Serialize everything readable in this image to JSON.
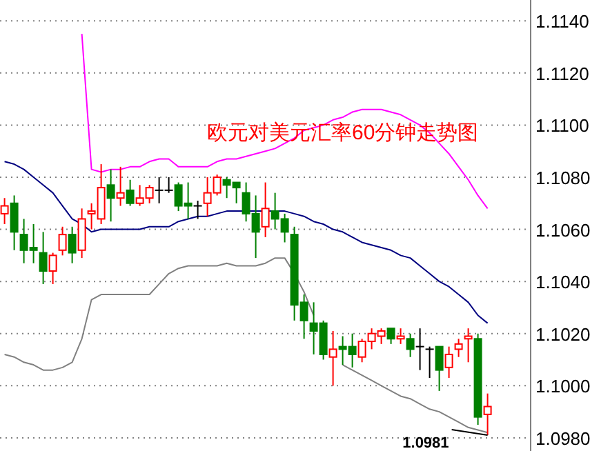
{
  "chart_data": {
    "type": "candlestick",
    "title": "欧元对美元汇率60分钟走势图",
    "categories": [
      null,
      null,
      null,
      null,
      null,
      null,
      null,
      null,
      null,
      null,
      null,
      null,
      null,
      null,
      null,
      null,
      null,
      null,
      null,
      null,
      null,
      null,
      null,
      null,
      null,
      null,
      null,
      null,
      null,
      null,
      null,
      null,
      null,
      null,
      null,
      null,
      null,
      null,
      null,
      null,
      null,
      null,
      null,
      null,
      null,
      null,
      null,
      null,
      null,
      null,
      null
    ],
    "ohlc": [
      [
        1.1066,
        1.1072,
        1.1062,
        1.1069
      ],
      [
        1.107,
        1.1073,
        1.1052,
        1.1059
      ],
      [
        1.1058,
        1.1064,
        1.1047,
        1.1052
      ],
      [
        1.1053,
        1.1062,
        1.1047,
        1.1052
      ],
      [
        1.1051,
        1.1059,
        1.1039,
        1.1044
      ],
      [
        1.1044,
        1.1051,
        1.1039,
        1.105
      ],
      [
        1.1052,
        1.1061,
        1.105,
        1.1058
      ],
      [
        1.1058,
        1.1061,
        1.1047,
        1.1051
      ],
      [
        1.1052,
        1.1068,
        1.1049,
        1.1064
      ],
      [
        1.1066,
        1.107,
        1.106,
        1.1067
      ],
      [
        1.1064,
        1.1085,
        1.1062,
        1.1076
      ],
      [
        1.1077,
        1.1083,
        1.1063,
        1.1072
      ],
      [
        1.1072,
        1.1084,
        1.1069,
        1.1074
      ],
      [
        1.1075,
        1.1079,
        1.1069,
        1.107
      ],
      [
        1.107,
        1.1077,
        1.1069,
        1.1072
      ],
      [
        1.1072,
        1.1077,
        1.107,
        1.1076
      ],
      [
        1.1075,
        1.108,
        1.107,
        1.1075
      ],
      [
        1.1075,
        1.108,
        1.1074,
        1.1075
      ],
      [
        1.1077,
        1.1078,
        1.1067,
        1.1069
      ],
      [
        1.107,
        1.1078,
        1.1064,
        1.1069
      ],
      [
        1.1069,
        1.1071,
        1.1064,
        1.1069
      ],
      [
        1.107,
        1.108,
        1.1065,
        1.1074
      ],
      [
        1.1074,
        1.1081,
        1.1073,
        1.108
      ],
      [
        1.1079,
        1.108,
        1.1072,
        1.1077
      ],
      [
        1.1078,
        1.1078,
        1.107,
        1.1076
      ],
      [
        1.1074,
        1.1078,
        1.1063,
        1.1066
      ],
      [
        1.1066,
        1.1073,
        1.1049,
        1.1059
      ],
      [
        1.1061,
        1.1078,
        1.1057,
        1.1068
      ],
      [
        1.1067,
        1.1074,
        1.106,
        1.1064
      ],
      [
        1.1064,
        1.1066,
        1.1055,
        1.1059
      ],
      [
        1.1058,
        1.1061,
        1.1025,
        1.1031
      ],
      [
        1.1032,
        1.1035,
        1.1018,
        1.1025
      ],
      [
        1.1024,
        1.1032,
        1.1012,
        1.1021
      ],
      [
        1.1024,
        1.1025,
        1.101,
        1.1012
      ],
      [
        1.1011,
        1.1021,
        1.1,
        1.1014
      ],
      [
        1.1015,
        1.1019,
        1.1008,
        1.1014
      ],
      [
        1.1015,
        1.102,
        1.1007,
        1.1012
      ],
      [
        1.1011,
        1.1018,
        1.1009,
        1.1017
      ],
      [
        1.1017,
        1.1022,
        1.1014,
        1.102
      ],
      [
        1.1019,
        1.1022,
        1.1016,
        1.1021
      ],
      [
        1.1022,
        1.1022,
        1.1016,
        1.1018
      ],
      [
        1.1018,
        1.1022,
        1.1016,
        1.1019
      ],
      [
        1.1018,
        1.102,
        1.1011,
        1.1014
      ],
      [
        1.1015,
        1.1022,
        1.1006,
        1.1015
      ],
      [
        1.1014,
        1.1015,
        1.1003,
        1.1014
      ],
      [
        1.1015,
        1.1015,
        1.0998,
        1.1006
      ],
      [
        1.1007,
        1.1015,
        1.1003,
        1.1012
      ],
      [
        1.1014,
        1.1018,
        1.1011,
        1.1016
      ],
      [
        1.1018,
        1.1022,
        1.1009,
        1.1019
      ],
      [
        1.1018,
        1.102,
        1.0985,
        1.0988
      ],
      [
        1.0989,
        1.0997,
        1.0981,
        1.0992
      ]
    ],
    "colors": [
      "#ff0000",
      "#008000",
      "#008000",
      "#008000",
      "#008000",
      "#ff0000",
      "#ff0000",
      "#008000",
      "#ff0000",
      "#ff0000",
      "#ff0000",
      "#008000",
      "#ff0000",
      "#008000",
      "#ff0000",
      "#ff0000",
      "#000000",
      "#000000",
      "#008000",
      "#008000",
      "#000000",
      "#ff0000",
      "#ff0000",
      "#008000",
      "#008000",
      "#008000",
      "#008000",
      "#ff0000",
      "#008000",
      "#008000",
      "#008000",
      "#008000",
      "#008000",
      "#008000",
      "#ff0000",
      "#008000",
      "#008000",
      "#ff0000",
      "#ff0000",
      "#ff0000",
      "#008000",
      "#ff0000",
      "#008000",
      "#000000",
      "#000000",
      "#008000",
      "#ff0000",
      "#ff0000",
      "#ff0000",
      "#008000",
      "#ff0000"
    ],
    "series": [
      {
        "type": "line",
        "color": "#ff00ff",
        "values": [
          null,
          null,
          null,
          null,
          null,
          null,
          null,
          null,
          1.1135,
          1.1083,
          1.1082,
          1.1083,
          1.1083,
          1.1084,
          1.1084,
          1.1086,
          1.1087,
          1.1087,
          1.1084,
          1.1084,
          1.1084,
          1.1084,
          1.1086,
          1.1087,
          1.1087,
          1.1088,
          1.1089,
          1.109,
          1.1091,
          1.1093,
          1.1095,
          1.1098,
          1.1099,
          1.11,
          1.1102,
          1.1103,
          1.1105,
          1.1106,
          1.1106,
          1.1106,
          1.1105,
          1.1104,
          1.1102,
          1.11,
          1.1097,
          1.1093,
          1.1089,
          1.1084,
          1.1079,
          1.1073,
          1.1068
        ]
      },
      {
        "type": "line",
        "color": "#000080",
        "values": [
          1.1086,
          1.1085,
          1.1083,
          1.108,
          1.1077,
          1.1074,
          1.1069,
          1.1064,
          1.1062,
          1.1059,
          1.106,
          1.106,
          1.106,
          1.106,
          1.106,
          1.1061,
          1.1061,
          1.1061,
          1.1063,
          1.1064,
          1.1065,
          1.1065,
          1.1066,
          1.1067,
          1.1067,
          1.1067,
          1.1067,
          1.1067,
          1.1067,
          1.1067,
          1.1066,
          1.1065,
          1.1063,
          1.1062,
          1.106,
          1.1059,
          1.1057,
          1.1055,
          1.1054,
          1.1053,
          1.1052,
          1.105,
          1.1049,
          1.1046,
          1.1043,
          1.104,
          1.1038,
          1.1035,
          1.1032,
          1.1027,
          1.1024
        ]
      },
      {
        "type": "line",
        "color": "#808080",
        "values": [
          1.1012,
          1.1011,
          1.1009,
          1.1008,
          1.1006,
          1.1006,
          1.1007,
          1.1009,
          1.1018,
          1.1033,
          1.1035,
          1.1035,
          1.1035,
          1.1035,
          1.1035,
          1.1035,
          1.1039,
          1.1043,
          1.1045,
          1.1046,
          1.1046,
          1.1046,
          1.1046,
          1.1047,
          1.1046,
          1.1046,
          1.1046,
          1.1047,
          1.1049,
          1.1049,
          1.1043,
          1.1036,
          1.1027,
          null,
          null,
          1.1008,
          1.1006,
          1.1004,
          1.1002,
          1.1,
          1.0998,
          1.0996,
          1.0995,
          1.0993,
          1.0991,
          1.099,
          1.0988,
          1.0986,
          1.0984,
          1.0983,
          1.0982
        ]
      }
    ],
    "ylim": [
      1.0976,
      1.1148
    ],
    "yticks": [
      {
        "value": 1.098,
        "label": "1.0980"
      },
      {
        "value": 1.1,
        "label": "1.1000"
      },
      {
        "value": 1.102,
        "label": "1.1020"
      },
      {
        "value": 1.104,
        "label": "1.1040"
      },
      {
        "value": 1.106,
        "label": "1.1060"
      },
      {
        "value": 1.108,
        "label": "1.1080"
      },
      {
        "value": 1.11,
        "label": "1.1100"
      },
      {
        "value": 1.112,
        "label": "1.1120"
      },
      {
        "value": 1.114,
        "label": "1.1140"
      }
    ],
    "grid": "y",
    "tick_labels": "y",
    "annotations": [
      "1.0981"
    ]
  }
}
